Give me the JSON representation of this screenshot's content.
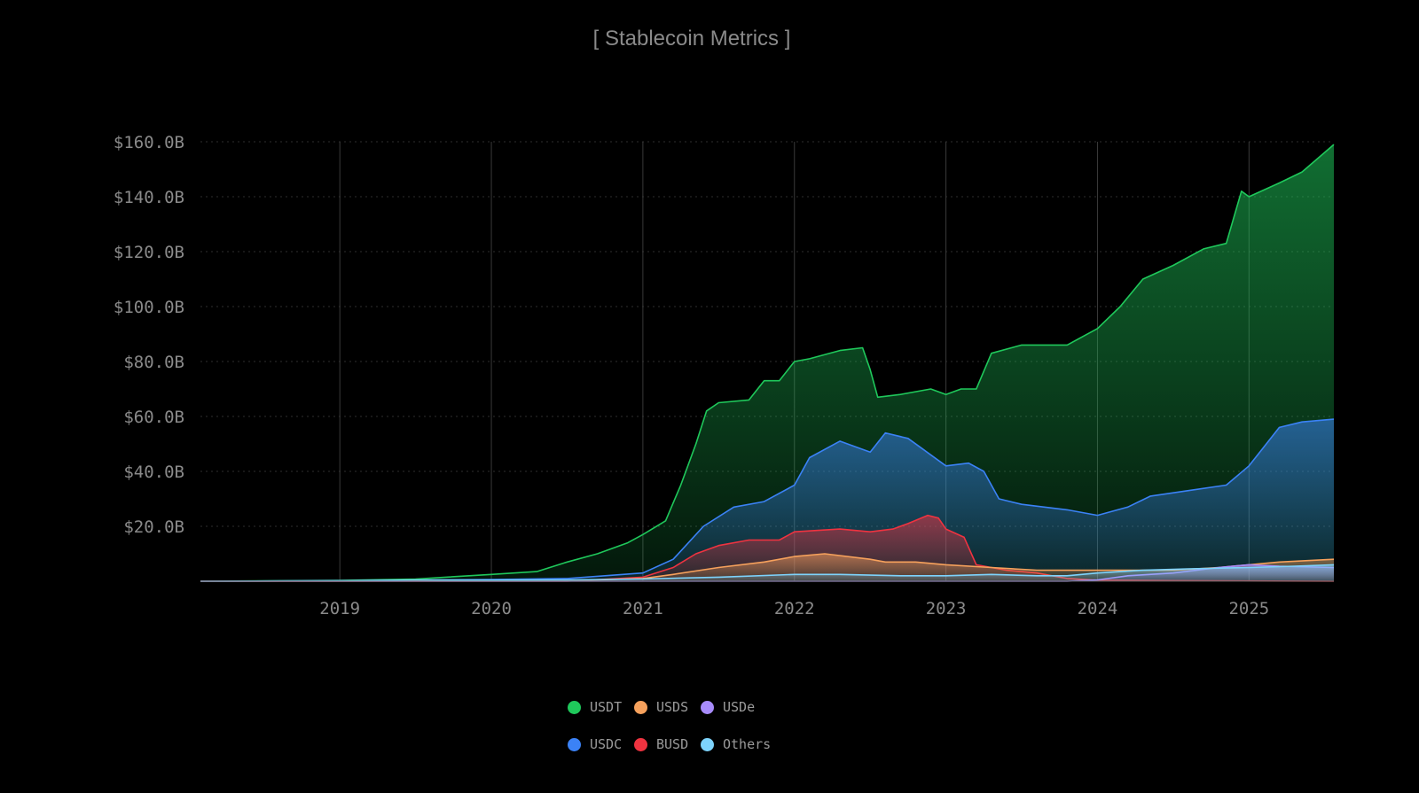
{
  "title": "[ Stablecoin Metrics ]",
  "chart_data": {
    "type": "area",
    "title": "[ Stablecoin Metrics ]",
    "x_unit": "year",
    "xlim": [
      2018.08,
      2025.56
    ],
    "ylim": [
      0,
      160
    ],
    "y_ticks": [
      20,
      40,
      60,
      80,
      100,
      120,
      140,
      160
    ],
    "y_tick_labels": [
      "$20.0B",
      "$40.0B",
      "$60.0B",
      "$80.0B",
      "$100.0B",
      "$120.0B",
      "$140.0B",
      "$160.0B"
    ],
    "x_ticks": [
      2019,
      2020,
      2021,
      2022,
      2023,
      2024,
      2025
    ],
    "x_tick_labels": [
      "2019",
      "2020",
      "2021",
      "2022",
      "2023",
      "2024",
      "2025"
    ],
    "grid": true,
    "legend_position": "bottom-center",
    "series": [
      {
        "name": "USDT",
        "color": "#1fc85b",
        "points": [
          [
            2018.08,
            0
          ],
          [
            2019.0,
            0.3
          ],
          [
            2019.5,
            0.8
          ],
          [
            2019.7,
            1.5
          ],
          [
            2020.0,
            2.5
          ],
          [
            2020.3,
            3.5
          ],
          [
            2020.5,
            7
          ],
          [
            2020.7,
            10
          ],
          [
            2020.9,
            14
          ],
          [
            2021.0,
            17
          ],
          [
            2021.15,
            22
          ],
          [
            2021.25,
            35
          ],
          [
            2021.35,
            50
          ],
          [
            2021.42,
            62
          ],
          [
            2021.5,
            65
          ],
          [
            2021.7,
            66
          ],
          [
            2021.8,
            73
          ],
          [
            2021.9,
            73
          ],
          [
            2022.0,
            80
          ],
          [
            2022.1,
            81
          ],
          [
            2022.3,
            84
          ],
          [
            2022.45,
            85
          ],
          [
            2022.5,
            77
          ],
          [
            2022.55,
            67
          ],
          [
            2022.7,
            68
          ],
          [
            2022.9,
            70
          ],
          [
            2023.0,
            68
          ],
          [
            2023.1,
            70
          ],
          [
            2023.2,
            70
          ],
          [
            2023.3,
            83
          ],
          [
            2023.5,
            86
          ],
          [
            2023.8,
            86
          ],
          [
            2024.0,
            92
          ],
          [
            2024.15,
            100
          ],
          [
            2024.3,
            110
          ],
          [
            2024.5,
            115
          ],
          [
            2024.7,
            121
          ],
          [
            2024.85,
            123
          ],
          [
            2024.95,
            142
          ],
          [
            2025.0,
            140
          ],
          [
            2025.2,
            145
          ],
          [
            2025.35,
            149
          ],
          [
            2025.56,
            159
          ]
        ]
      },
      {
        "name": "USDC",
        "color": "#3b82f6",
        "points": [
          [
            2018.08,
            0
          ],
          [
            2019.0,
            0.2
          ],
          [
            2020.0,
            0.6
          ],
          [
            2020.5,
            1
          ],
          [
            2021.0,
            3
          ],
          [
            2021.2,
            8
          ],
          [
            2021.4,
            20
          ],
          [
            2021.6,
            27
          ],
          [
            2021.8,
            29
          ],
          [
            2022.0,
            35
          ],
          [
            2022.1,
            45
          ],
          [
            2022.3,
            51
          ],
          [
            2022.5,
            47
          ],
          [
            2022.6,
            54
          ],
          [
            2022.75,
            52
          ],
          [
            2022.85,
            48
          ],
          [
            2023.0,
            42
          ],
          [
            2023.15,
            43
          ],
          [
            2023.25,
            40
          ],
          [
            2023.35,
            30
          ],
          [
            2023.5,
            28
          ],
          [
            2023.8,
            26
          ],
          [
            2024.0,
            24
          ],
          [
            2024.2,
            27
          ],
          [
            2024.35,
            31
          ],
          [
            2024.6,
            33
          ],
          [
            2024.85,
            35
          ],
          [
            2025.0,
            42
          ],
          [
            2025.2,
            56
          ],
          [
            2025.35,
            58
          ],
          [
            2025.56,
            59
          ]
        ]
      },
      {
        "name": "BUSD",
        "color": "#ef3340",
        "points": [
          [
            2018.08,
            0
          ],
          [
            2020.5,
            0
          ],
          [
            2021.0,
            1.5
          ],
          [
            2021.2,
            5
          ],
          [
            2021.35,
            10
          ],
          [
            2021.5,
            13
          ],
          [
            2021.7,
            15
          ],
          [
            2021.9,
            15
          ],
          [
            2022.0,
            18
          ],
          [
            2022.3,
            19
          ],
          [
            2022.5,
            18
          ],
          [
            2022.65,
            19
          ],
          [
            2022.75,
            21
          ],
          [
            2022.88,
            24
          ],
          [
            2022.95,
            23
          ],
          [
            2023.0,
            19
          ],
          [
            2023.12,
            16
          ],
          [
            2023.2,
            6
          ],
          [
            2023.4,
            4
          ],
          [
            2023.6,
            3
          ],
          [
            2023.8,
            1
          ],
          [
            2024.0,
            0.4
          ],
          [
            2024.5,
            0.2
          ],
          [
            2025.56,
            0
          ]
        ]
      },
      {
        "name": "USDS",
        "color": "#f6a15c",
        "points": [
          [
            2018.08,
            0
          ],
          [
            2020.5,
            0.2
          ],
          [
            2021.0,
            1
          ],
          [
            2021.2,
            2.5
          ],
          [
            2021.5,
            5
          ],
          [
            2021.8,
            7
          ],
          [
            2022.0,
            9
          ],
          [
            2022.2,
            10
          ],
          [
            2022.5,
            8
          ],
          [
            2022.6,
            7
          ],
          [
            2022.8,
            7
          ],
          [
            2023.0,
            6
          ],
          [
            2023.3,
            5
          ],
          [
            2023.6,
            4
          ],
          [
            2023.8,
            4
          ],
          [
            2024.0,
            4
          ],
          [
            2024.5,
            4
          ],
          [
            2024.8,
            5
          ],
          [
            2025.0,
            6
          ],
          [
            2025.2,
            7
          ],
          [
            2025.56,
            8
          ]
        ]
      },
      {
        "name": "USDe",
        "color": "#a78bfa",
        "points": [
          [
            2018.08,
            0
          ],
          [
            2023.8,
            0
          ],
          [
            2024.0,
            0.5
          ],
          [
            2024.2,
            2
          ],
          [
            2024.5,
            3
          ],
          [
            2024.8,
            5
          ],
          [
            2025.0,
            6
          ],
          [
            2025.2,
            5.5
          ],
          [
            2025.56,
            5
          ]
        ]
      },
      {
        "name": "Others",
        "color": "#7dd3fc",
        "points": [
          [
            2018.08,
            0
          ],
          [
            2019.0,
            0.2
          ],
          [
            2019.5,
            0.5
          ],
          [
            2020.0,
            0.4
          ],
          [
            2020.5,
            0.5
          ],
          [
            2021.0,
            0.8
          ],
          [
            2021.5,
            1.5
          ],
          [
            2022.0,
            2.5
          ],
          [
            2022.3,
            2.5
          ],
          [
            2022.7,
            2
          ],
          [
            2023.0,
            2
          ],
          [
            2023.3,
            2.5
          ],
          [
            2023.6,
            2
          ],
          [
            2023.8,
            2
          ],
          [
            2024.0,
            3
          ],
          [
            2024.3,
            4
          ],
          [
            2024.6,
            4.5
          ],
          [
            2025.0,
            5
          ],
          [
            2025.3,
            5.5
          ],
          [
            2025.56,
            6
          ]
        ]
      }
    ]
  },
  "legend": [
    {
      "label": "USDT",
      "color": "#1fc85b"
    },
    {
      "label": "USDS",
      "color": "#f6a15c"
    },
    {
      "label": "USDe",
      "color": "#a78bfa"
    },
    {
      "label": "USDC",
      "color": "#3b82f6"
    },
    {
      "label": "BUSD",
      "color": "#ef3340"
    },
    {
      "label": "Others",
      "color": "#7dd3fc"
    }
  ]
}
